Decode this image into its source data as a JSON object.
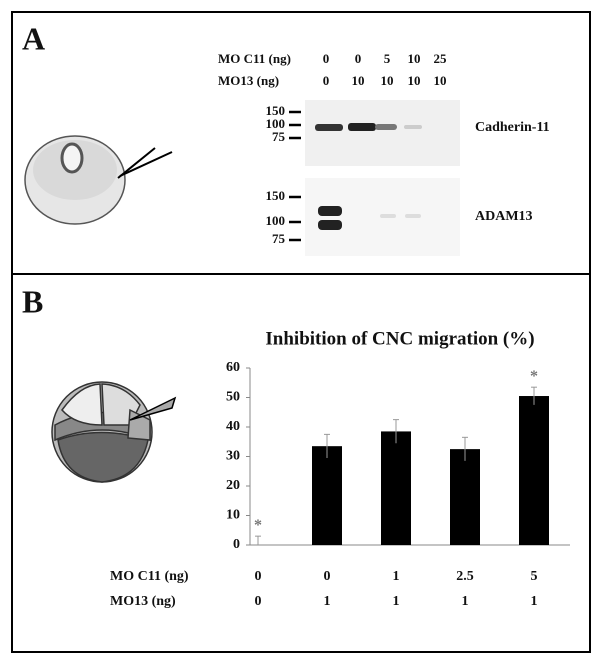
{
  "panel_a": {
    "label": "A",
    "conditions": [
      {
        "name": "MO C11 (ng)",
        "values": [
          "0",
          "0",
          "5",
          "10",
          "25"
        ]
      },
      {
        "name": "MO13 (ng)",
        "values": [
          "0",
          "10",
          "10",
          "10",
          "10"
        ]
      }
    ],
    "blots": [
      {
        "name": "Cadherin-11",
        "markers": [
          "150",
          "100",
          "75"
        ]
      },
      {
        "name": "ADAM13",
        "markers": [
          "150",
          "100",
          "75"
        ]
      }
    ]
  },
  "panel_b_label": "B",
  "chart_data": {
    "type": "bar",
    "title": "Inhibition of CNC migration (%)",
    "categories": [
      "0",
      "0",
      "1",
      "2.5",
      "5"
    ],
    "category_rows": [
      {
        "name": "MO C11 (ng)",
        "labels": [
          "0",
          "0",
          "1",
          "2.5",
          "5"
        ]
      },
      {
        "name": "MO13 (ng)",
        "labels": [
          "0",
          "1",
          "1",
          "1",
          "1"
        ]
      }
    ],
    "values": [
      0,
      33.5,
      38.5,
      32.5,
      50.5
    ],
    "errors": [
      3,
      4,
      4,
      4,
      3
    ],
    "markers": [
      "*",
      null,
      null,
      null,
      "*"
    ],
    "color": "#000000",
    "ylim": [
      0,
      60
    ],
    "yticks": [
      0,
      10,
      20,
      30,
      40,
      50,
      60
    ],
    "grid": false
  }
}
